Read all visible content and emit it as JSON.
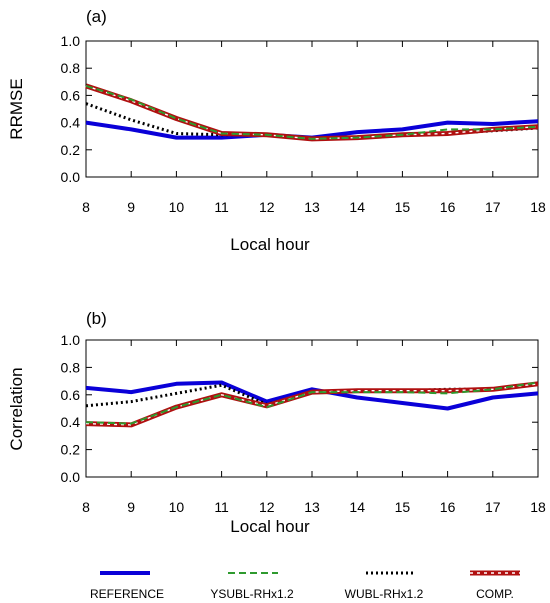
{
  "colors": {
    "reference": "#0a00d8",
    "ysubl": "#2e9a2e",
    "wubl": "#000000",
    "comp": "#b01010"
  },
  "legend": [
    {
      "key": "reference",
      "label": "REFERENCE",
      "style": "solid"
    },
    {
      "key": "ysubl",
      "label": "YSUBL-RHx1.2",
      "style": "dashed"
    },
    {
      "key": "wubl",
      "label": "WUBL-RHx1.2",
      "style": "dotted"
    },
    {
      "key": "comp",
      "label": "COMP.",
      "style": "comp"
    }
  ],
  "chart_data": [
    {
      "type": "line",
      "panel_label": "(a)",
      "xlabel": "Local hour",
      "ylabel": "RRMSE",
      "x": [
        8,
        9,
        10,
        11,
        12,
        13,
        14,
        15,
        16,
        17,
        18
      ],
      "xlim": [
        8,
        18
      ],
      "ylim": [
        0.0,
        1.0
      ],
      "yticks": [
        "0.0",
        "0.2",
        "0.4",
        "0.6",
        "0.8",
        "1.0"
      ],
      "xticks": [
        "8",
        "9",
        "10",
        "11",
        "12",
        "13",
        "14",
        "15",
        "16",
        "17",
        "18"
      ],
      "grid": false,
      "series": [
        {
          "key": "reference",
          "values": [
            0.4,
            0.35,
            0.29,
            0.29,
            0.31,
            0.29,
            0.33,
            0.35,
            0.4,
            0.39,
            0.41
          ]
        },
        {
          "key": "ysubl",
          "values": [
            0.67,
            0.57,
            0.43,
            0.32,
            0.31,
            0.28,
            0.29,
            0.31,
            0.35,
            0.35,
            0.37
          ]
        },
        {
          "key": "wubl",
          "values": [
            0.54,
            0.42,
            0.32,
            0.31,
            0.31,
            0.28,
            0.29,
            0.31,
            0.32,
            0.34,
            0.36
          ]
        },
        {
          "key": "comp",
          "values": [
            0.67,
            0.56,
            0.43,
            0.32,
            0.31,
            0.28,
            0.29,
            0.31,
            0.32,
            0.35,
            0.37
          ]
        }
      ]
    },
    {
      "type": "line",
      "panel_label": "(b)",
      "xlabel": "Local hour",
      "ylabel": "Correlation",
      "x": [
        8,
        9,
        10,
        11,
        12,
        13,
        14,
        15,
        16,
        17,
        18
      ],
      "xlim": [
        8,
        18
      ],
      "ylim": [
        0.0,
        1.0
      ],
      "yticks": [
        "0.0",
        "0.2",
        "0.4",
        "0.6",
        "0.8",
        "1.0"
      ],
      "xticks": [
        "8",
        "9",
        "10",
        "11",
        "12",
        "13",
        "14",
        "15",
        "16",
        "17",
        "18"
      ],
      "grid": false,
      "series": [
        {
          "key": "reference",
          "values": [
            0.65,
            0.62,
            0.68,
            0.69,
            0.55,
            0.64,
            0.58,
            0.54,
            0.5,
            0.58,
            0.61
          ]
        },
        {
          "key": "ysubl",
          "values": [
            0.4,
            0.39,
            0.51,
            0.6,
            0.51,
            0.62,
            0.62,
            0.62,
            0.61,
            0.64,
            0.69
          ]
        },
        {
          "key": "wubl",
          "values": [
            0.52,
            0.55,
            0.61,
            0.67,
            0.53,
            0.62,
            0.63,
            0.63,
            0.64,
            0.64,
            0.68
          ]
        },
        {
          "key": "comp",
          "values": [
            0.39,
            0.38,
            0.51,
            0.6,
            0.52,
            0.62,
            0.63,
            0.63,
            0.63,
            0.64,
            0.68
          ]
        }
      ]
    }
  ]
}
